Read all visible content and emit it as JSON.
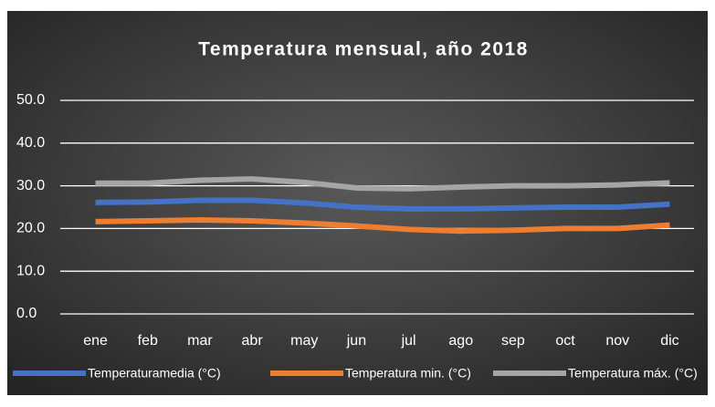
{
  "chart_data": {
    "type": "line",
    "title": "Temperatura mensual, año 2018",
    "categories": [
      "ene",
      "feb",
      "mar",
      "abr",
      "may",
      "jun",
      "jul",
      "ago",
      "sep",
      "oct",
      "nov",
      "dic"
    ],
    "series": [
      {
        "name": "Temperaturamedia (°C)",
        "color": "#4472c4",
        "values": [
          26.1,
          26.2,
          26.6,
          26.6,
          26.0,
          25.0,
          24.6,
          24.6,
          24.8,
          25.0,
          25.0,
          25.7
        ]
      },
      {
        "name": "Temperatura min. (°C)",
        "color": "#ed7d31",
        "values": [
          21.6,
          21.8,
          22.0,
          21.8,
          21.3,
          20.6,
          19.8,
          19.4,
          19.6,
          20.0,
          20.0,
          20.8
        ]
      },
      {
        "name": "Temperatura máx. (°C)",
        "color": "#a5a5a5",
        "values": [
          30.6,
          30.6,
          31.3,
          31.6,
          30.8,
          29.5,
          29.3,
          29.7,
          30.0,
          30.0,
          30.2,
          30.7
        ]
      }
    ],
    "ylim": [
      0,
      50
    ],
    "yticks": [
      {
        "value": 0,
        "label": "0.0"
      },
      {
        "value": 10,
        "label": "10.0"
      },
      {
        "value": 20,
        "label": "20.0"
      },
      {
        "value": 30,
        "label": "30.0"
      },
      {
        "value": 40,
        "label": "40.0"
      },
      {
        "value": 50,
        "label": "50.0"
      }
    ],
    "grid": true,
    "legend": "bottom"
  }
}
